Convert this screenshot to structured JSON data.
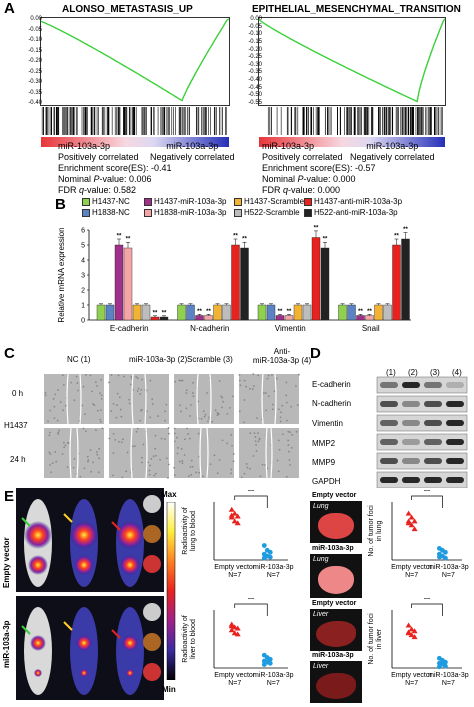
{
  "panel_labels": {
    "a": "A",
    "b": "B",
    "c": "C",
    "d": "D",
    "e": "E"
  },
  "gsea": [
    {
      "title": "ALONSO_METASTASIS_UP",
      "pos_label": "miR-103a-3p",
      "pos_sub": "Positively correlated",
      "neg_label": "miR-103a-3p",
      "neg_sub": "Negatively correlated",
      "es_label": "Enrichment score(ES): -0.41",
      "p_label": "Nominal ",
      "p_italic": "P",
      "p_value": "-value: 0.006",
      "fdr_label": "FDR ",
      "fdr_italic": "q",
      "fdr_value": "-value: 0.582"
    },
    {
      "title": "EPITHELIAL_MESENCHYMAL_TRANSITION",
      "pos_label": "miR-103a-3p",
      "pos_sub": "Positively correlated",
      "neg_label": "miR-103a-3p",
      "neg_sub": "Negatively correlated",
      "es_label": "Enrichment score(ES): -0.57",
      "p_label": "Nominal ",
      "p_italic": "P",
      "p_value": "-value: 0.000",
      "fdr_label": "FDR ",
      "fdr_italic": "q",
      "fdr_value": "-value: 0.000"
    }
  ],
  "gsea_yticks": [
    "0.00",
    "-0.05",
    "-0.10",
    "-0.15",
    "-0.20",
    "-0.25",
    "-0.30",
    "-0.35",
    "-0.40"
  ],
  "gsea_yticks2": [
    "0.00",
    "-0.05",
    "-0.10",
    "-0.15",
    "-0.20",
    "-0.25",
    "-0.30",
    "-0.35",
    "-0.40",
    "-0.45",
    "-0.50",
    "-0.55"
  ],
  "chart_data": {
    "type": "bar",
    "ylabel": "Relative mRNA expression",
    "categories": [
      "E-cadherin",
      "N-cadherin",
      "Vimentin",
      "Snail"
    ],
    "yticks": [
      "0",
      "1",
      "2",
      "3",
      "4",
      "5",
      "6"
    ],
    "ylim": [
      0,
      6
    ],
    "series": [
      {
        "name": "H1437-NC",
        "color": "#8fd14f",
        "values": [
          1.0,
          1.0,
          1.0,
          1.0
        ]
      },
      {
        "name": "H1437-miR-103a-3p",
        "color": "#a0308a",
        "values": [
          5.0,
          0.3,
          0.3,
          0.3
        ]
      },
      {
        "name": "H1437-Scramble",
        "color": "#f2b233",
        "values": [
          1.0,
          1.0,
          1.0,
          1.0
        ]
      },
      {
        "name": "H1437-anti-miR-103a-3p",
        "color": "#e8221e",
        "values": [
          0.2,
          5.0,
          5.5,
          5.0
        ]
      },
      {
        "name": "H1838-NC",
        "color": "#5b82c2",
        "values": [
          1.0,
          1.0,
          1.0,
          1.0
        ]
      },
      {
        "name": "H1838-miR-103a-3p",
        "color": "#f4a6a6",
        "values": [
          4.8,
          0.3,
          0.3,
          0.3
        ]
      },
      {
        "name": "H522-Scramble",
        "color": "#bdbdbd",
        "values": [
          1.0,
          1.0,
          1.0,
          1.0
        ]
      },
      {
        "name": "H522-anti-miR-103a-3p",
        "color": "#222222",
        "values": [
          0.2,
          4.8,
          4.8,
          5.4
        ]
      }
    ]
  },
  "legend_rows": [
    [
      "H1437-NC",
      "H1437-miR-103a-3p",
      "H1437-Scramble",
      "H1437-anti-miR-103a-3p"
    ],
    [
      "H1838-NC",
      "H1838-miR-103a-3p",
      "H522-Scramble",
      "H522-anti-miR-103a-3p"
    ]
  ],
  "sig": "**",
  "wound": {
    "cols": [
      "NC (1)",
      "miR-103a-3p (2)",
      "Scramble (3)",
      "Anti-\nmiR-103a-3p (4)"
    ],
    "col4_line1": "Anti-",
    "col4_line2": "miR-103a-3p (4)",
    "row0": "0 h",
    "cell": "H1437",
    "row24": "24 h"
  },
  "western": {
    "lanes": [
      "(1)",
      "(2)",
      "(3)",
      "(4)"
    ],
    "proteins": [
      "E-cadherin",
      "N-cadherin",
      "Vimentin",
      "MMP2",
      "MMP9",
      "GAPDH"
    ]
  },
  "imaging": {
    "row1": "Empty vector",
    "row2": "miR-103a-3p",
    "max": "Max",
    "min": "Min"
  },
  "scatter_plots": [
    {
      "ylabel": "Radioactivity of\nlung to blood",
      "ylabel1": "Radioactivity of",
      "ylabel2": "lung to blood",
      "sig": "**",
      "x1": "Empty vector",
      "x1n": "N=7",
      "x2": "miR-103a-3p",
      "x2n": "N=7",
      "group1": [
        5.2,
        4.8,
        4.5,
        4.4,
        4.0,
        3.8,
        4.6
      ],
      "group2": [
        1.5,
        1.0,
        0.8,
        0.6,
        0.4,
        0.3,
        0.2
      ],
      "ymax": 6
    },
    {
      "ylabel1": "Radioactivity of",
      "ylabel2": "liver to blood",
      "sig": "**",
      "x1": "Empty vector",
      "x1n": "N=7",
      "x2": "miR-103a-3p",
      "x2n": "N=7",
      "group1": [
        7.5,
        7.0,
        6.8,
        6.5,
        6.0,
        5.8,
        7.2
      ],
      "group2": [
        2.2,
        1.8,
        1.5,
        1.2,
        1.0,
        0.8,
        0.6
      ],
      "ymax": 10
    },
    {
      "ylabel1": "No. of tumor foci",
      "ylabel2": "in lung",
      "sig": "**",
      "x1": "Empty vector",
      "x1n": "N=7",
      "x2": "miR-103a-3p",
      "x2n": "N=7",
      "group1": [
        12,
        11,
        10,
        10,
        9,
        8,
        9.5
      ],
      "group2": [
        3,
        2.5,
        2,
        1.5,
        1,
        0.5,
        0.8
      ],
      "ymax": 15
    },
    {
      "ylabel1": "No. of tumor foci",
      "ylabel2": "in liver",
      "sig": "**",
      "x1": "Empty vector",
      "x1n": "N=7",
      "x2": "miR-103a-3p",
      "x2n": "N=7",
      "group1": [
        11,
        10,
        9.5,
        9,
        8.5,
        8,
        9.2
      ],
      "group2": [
        2.5,
        2,
        1.5,
        1.2,
        1,
        0.5,
        0.3
      ],
      "ymax": 15
    }
  ],
  "organs": [
    {
      "group": "Empty vector",
      "organ": "Lung"
    },
    {
      "group": "miR-103a-3p",
      "organ": "Lung"
    },
    {
      "group": "Empty vector",
      "organ": "Liver"
    },
    {
      "group": "miR-103a-3p",
      "organ": "Liver"
    }
  ]
}
